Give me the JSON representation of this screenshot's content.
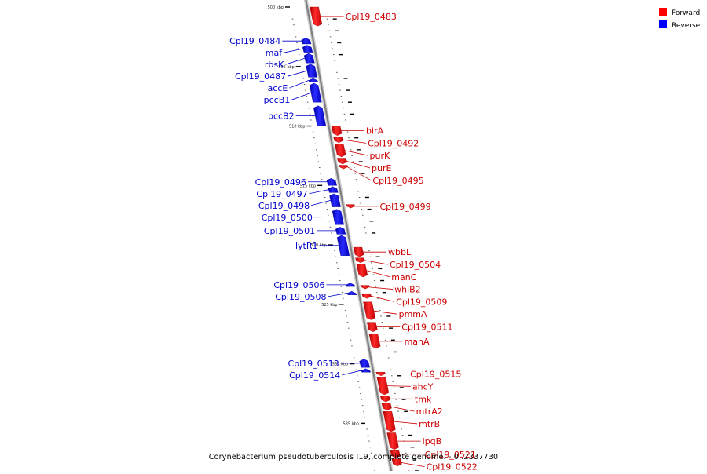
{
  "legend": [
    {
      "label": "Forward",
      "color": "#ff0000"
    },
    {
      "label": "Reverse",
      "color": "#0000ff"
    }
  ],
  "caption": "Corynebacterium pseudotuberculosis I19, complete genome. - 0..2337730",
  "ticks": [
    {
      "kbp": 500,
      "label": "500 kbp"
    },
    {
      "kbp": 505,
      "label": "505 kbp"
    },
    {
      "kbp": 510,
      "label": "510 kbp"
    },
    {
      "kbp": 515,
      "label": "515 kbp"
    },
    {
      "kbp": 520,
      "label": "520 kbp"
    },
    {
      "kbp": 525,
      "label": "525 kbp"
    },
    {
      "kbp": 530,
      "label": "530 kbp"
    },
    {
      "kbp": 535,
      "label": "535 kbp"
    }
  ],
  "genes": [
    {
      "name": "Cpl19_0483",
      "strand": "forward",
      "start": 500.0,
      "end": 501.6
    },
    {
      "name": "Cpl19_0484",
      "strand": "reverse",
      "start": 502.6,
      "end": 503.1
    },
    {
      "name": "maf",
      "strand": "reverse",
      "start": 503.2,
      "end": 503.8
    },
    {
      "name": "rbsK",
      "strand": "reverse",
      "start": 503.9,
      "end": 504.7
    },
    {
      "name": "Cpl19_0487",
      "strand": "reverse",
      "start": 504.8,
      "end": 505.9
    },
    {
      "name": "accE",
      "strand": "reverse",
      "start": 506.0,
      "end": 506.3
    },
    {
      "name": "pccB1",
      "strand": "reverse",
      "start": 506.4,
      "end": 508.0
    },
    {
      "name": "pccB2",
      "strand": "reverse",
      "start": 508.3,
      "end": 510.0
    },
    {
      "name": "birA",
      "strand": "forward",
      "start": 510.0,
      "end": 510.8
    },
    {
      "name": "Cpl19_0492",
      "strand": "forward",
      "start": 510.9,
      "end": 511.4
    },
    {
      "name": "purK",
      "strand": "forward",
      "start": 511.5,
      "end": 512.6
    },
    {
      "name": "purE",
      "strand": "forward",
      "start": 512.7,
      "end": 513.2
    },
    {
      "name": "Cpl19_0495",
      "strand": "forward",
      "start": 513.3,
      "end": 513.6
    },
    {
      "name": "Cpl19_0496",
      "strand": "reverse",
      "start": 514.4,
      "end": 515.0
    },
    {
      "name": "Cpl19_0497",
      "strand": "reverse",
      "start": 515.1,
      "end": 515.6
    },
    {
      "name": "Cpl19_0498",
      "strand": "reverse",
      "start": 515.7,
      "end": 516.8
    },
    {
      "name": "Cpl19_0499",
      "strand": "forward",
      "start": 516.6,
      "end": 516.9
    },
    {
      "name": "Cpl19_0500",
      "strand": "reverse",
      "start": 517.0,
      "end": 518.3
    },
    {
      "name": "Cpl19_0501",
      "strand": "reverse",
      "start": 518.5,
      "end": 519.1
    },
    {
      "name": "lytR1",
      "strand": "reverse",
      "start": 519.2,
      "end": 520.9
    },
    {
      "name": "wbbL",
      "strand": "forward",
      "start": 520.2,
      "end": 521.0
    },
    {
      "name": "Cpl19_0504",
      "strand": "forward",
      "start": 521.1,
      "end": 521.5
    },
    {
      "name": "manC",
      "strand": "forward",
      "start": 521.6,
      "end": 522.7
    },
    {
      "name": "Cpl19_0506",
      "strand": "reverse",
      "start": 523.2,
      "end": 523.5
    },
    {
      "name": "whiB2",
      "strand": "forward",
      "start": 523.4,
      "end": 523.7
    },
    {
      "name": "Cpl19_0508",
      "strand": "reverse",
      "start": 523.9,
      "end": 524.2
    },
    {
      "name": "Cpl19_0509",
      "strand": "forward",
      "start": 524.1,
      "end": 524.5
    },
    {
      "name": "pmmA",
      "strand": "forward",
      "start": 524.8,
      "end": 526.3
    },
    {
      "name": "Cpl19_0511",
      "strand": "forward",
      "start": 526.5,
      "end": 527.3
    },
    {
      "name": "manA",
      "strand": "forward",
      "start": 527.5,
      "end": 528.7
    },
    {
      "name": "Cpl19_0513",
      "strand": "reverse",
      "start": 529.6,
      "end": 530.3
    },
    {
      "name": "Cpl19_0514",
      "strand": "reverse",
      "start": 530.4,
      "end": 530.7
    },
    {
      "name": "Cpl19_0515",
      "strand": "forward",
      "start": 530.7,
      "end": 531.0
    },
    {
      "name": "ahcY",
      "strand": "forward",
      "start": 531.1,
      "end": 532.6
    },
    {
      "name": "tmk",
      "strand": "forward",
      "start": 532.7,
      "end": 533.2
    },
    {
      "name": "mtrA2",
      "strand": "forward",
      "start": 533.3,
      "end": 533.9
    },
    {
      "name": "mtrB",
      "strand": "forward",
      "start": 534.0,
      "end": 535.7
    },
    {
      "name": "lpqB",
      "strand": "forward",
      "start": 535.8,
      "end": 537.2
    },
    {
      "name": "Cpl19_0521",
      "strand": "forward",
      "start": 537.3,
      "end": 537.9
    },
    {
      "name": "Cpl19_0522",
      "strand": "forward",
      "start": 538.0,
      "end": 538.6
    }
  ]
}
